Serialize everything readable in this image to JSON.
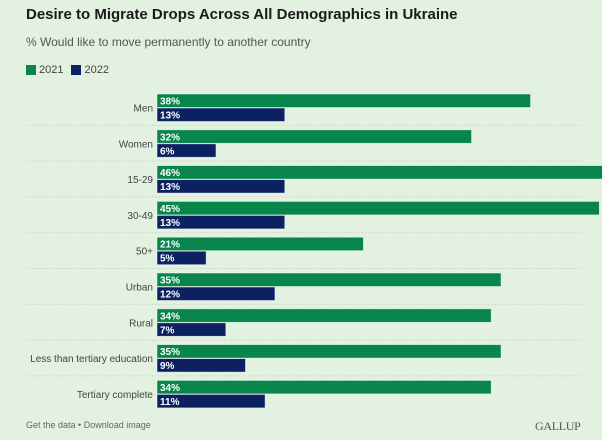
{
  "header": {
    "title": "Desire to Migrate Drops Across All Demographics in Ukraine",
    "subtitle": "% Would like to move permanently to another country"
  },
  "colors": {
    "background": "#e2f1e0",
    "series_2021": "#07854a",
    "series_2022": "#0c2161",
    "gridline": "#c9d8c6"
  },
  "chart_data": {
    "type": "bar",
    "orientation": "horizontal",
    "title": "Desire to Migrate Drops Across All Demographics in Ukraine",
    "subtitle": "% Would like to move permanently to another country",
    "xlabel": "",
    "ylabel": "",
    "xlim": [
      0,
      46
    ],
    "grid": false,
    "legend_position": "top-left",
    "categories": [
      "Men",
      "Women",
      "15-29",
      "30-49",
      "50+",
      "Urban",
      "Rural",
      "Less than tertiary education",
      "Tertiary complete"
    ],
    "series": [
      {
        "name": "2021",
        "values": [
          38,
          32,
          46,
          45,
          21,
          35,
          34,
          35,
          34
        ],
        "labels": [
          "38%",
          "32%",
          "46%",
          "45%",
          "21%",
          "35%",
          "34%",
          "35%",
          "34%"
        ]
      },
      {
        "name": "2022",
        "values": [
          13,
          6,
          13,
          13,
          5,
          12,
          7,
          9,
          11
        ],
        "labels": [
          "13%",
          "6%",
          "13%",
          "13%",
          "5%",
          "12%",
          "7%",
          "9%",
          "11%"
        ]
      }
    ]
  },
  "footer": {
    "get_data": "Get the data",
    "separator": " • ",
    "download": "Download image",
    "brand": "GALLUP"
  }
}
